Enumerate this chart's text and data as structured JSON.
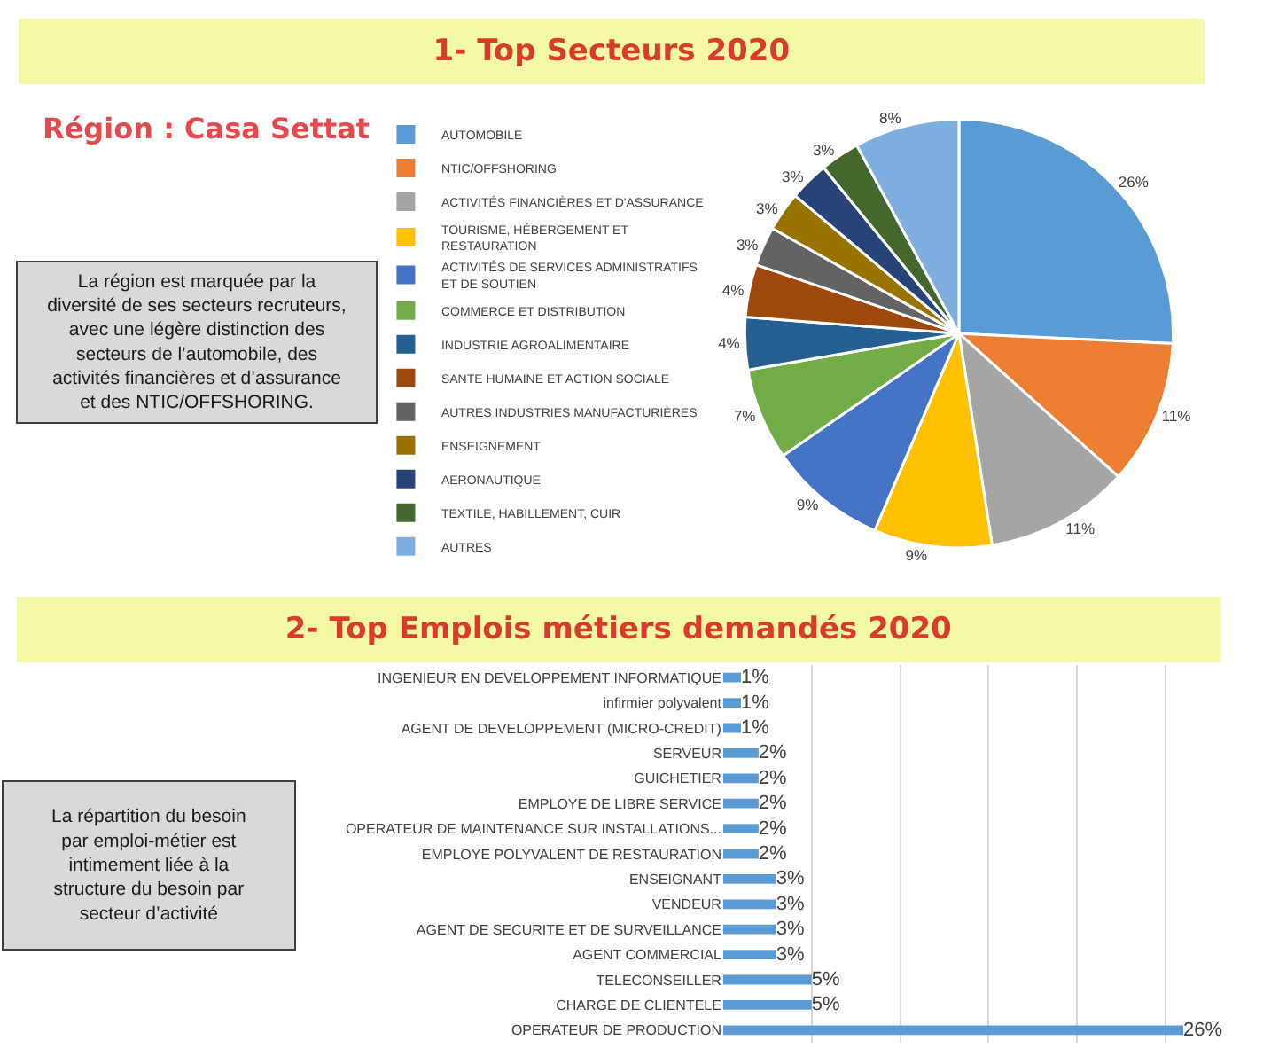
{
  "chart_data": [
    {
      "type": "pie",
      "title": "1- Top Secteurs 2020",
      "subtitle": "Région : Casa Settat",
      "categories": [
        "AUTOMOBILE",
        "NTIC/OFFSHORING",
        "ACTIVITÉS FINANCIÈRES ET D'ASSURANCE",
        "TOURISME, HÉBERGEMENT ET RESTAURATION",
        "ACTIVITÉS DE SERVICES ADMINISTRATIFS ET DE SOUTIEN",
        "COMMERCE ET DISTRIBUTION",
        "INDUSTRIE AGROALIMENTAIRE",
        "SANTE HUMAINE ET ACTION SOCIALE",
        "AUTRES INDUSTRIES MANUFACTURIÈRES",
        "ENSEIGNEMENT",
        "AERONAUTIQUE",
        "TEXTILE, HABILLEMENT, CUIR",
        "AUTRES"
      ],
      "values": [
        26,
        11,
        11,
        9,
        9,
        7,
        4,
        4,
        3,
        3,
        3,
        3,
        8
      ],
      "colors": [
        "#5b9bd5",
        "#ed7d31",
        "#a5a5a5",
        "#ffc000",
        "#4472c4",
        "#70ad47",
        "#255e91",
        "#9e480e",
        "#636363",
        "#997300",
        "#264478",
        "#43682b",
        "#7cafdd"
      ],
      "value_labels": [
        "26%",
        "11%",
        "11%",
        "9%",
        "9%",
        "7%",
        "4%",
        "4%",
        "3%",
        "3%",
        "3%",
        "3%",
        "8%"
      ],
      "legend": "left",
      "annotations": [
        "La région est marquée par la diversité de ses secteurs recruteurs, avec une légère distinction des secteurs de l’automobile, des activités financières et d’assurance et des NTIC/OFFSHORING."
      ]
    },
    {
      "type": "bar",
      "orientation": "horizontal",
      "title": "2- Top Emplois métiers demandés 2020",
      "categories": [
        "INGENIEUR EN DEVELOPPEMENT INFORMATIQUE",
        "infirmier polyvalent",
        "AGENT DE DEVELOPPEMENT (MICRO-CREDIT)",
        "SERVEUR",
        "GUICHETIER",
        "EMPLOYE DE LIBRE SERVICE",
        "OPERATEUR DE MAINTENANCE SUR INSTALLATIONS...",
        "EMPLOYE POLYVALENT DE RESTAURATION",
        "ENSEIGNANT",
        "VENDEUR",
        "AGENT DE SECURITE ET DE SURVEILLANCE",
        "AGENT COMMERCIAL",
        "TELECONSEILLER",
        "CHARGE DE CLIENTELE",
        "OPERATEUR DE PRODUCTION"
      ],
      "values": [
        1,
        1,
        1,
        2,
        2,
        2,
        2,
        2,
        3,
        3,
        3,
        3,
        5,
        5,
        26
      ],
      "color": "#5b9bd5",
      "value_labels": [
        "1%",
        "1%",
        "1%",
        "2%",
        "2%",
        "2%",
        "2%",
        "2%",
        "3%",
        "3%",
        "3%",
        "3%",
        "5%",
        "5%",
        "26%"
      ],
      "xticks": [
        {
          "value": 5,
          "label": null
        },
        {
          "value": 10,
          "label": null
        },
        {
          "value": 15,
          "label": null
        },
        {
          "value": 20,
          "label": null
        },
        {
          "value": 25,
          "label": null
        }
      ],
      "grid": "x",
      "tick_labels": "y",
      "legend": false,
      "annotations": [
        "La répartition du besoin par emploi-métier est intimement liée à la structure du besoin par secteur d’activité"
      ]
    }
  ]
}
